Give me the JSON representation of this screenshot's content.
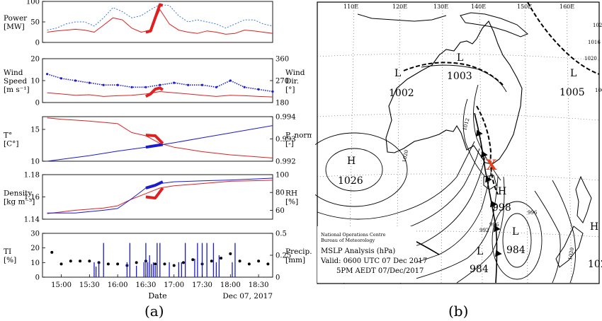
{
  "figure": {
    "caption_a": "(a)",
    "caption_b": "(b)"
  },
  "chart_data": [
    {
      "type": "line",
      "panel": "power",
      "ylabel_lines": [
        "Power",
        "[MW]"
      ],
      "ylim": [
        0,
        100
      ],
      "yticks": [
        0,
        50,
        100
      ],
      "series": [
        {
          "color": "#e02020",
          "style": "solid",
          "x": [
            "14:45",
            "14:55",
            "15:05",
            "15:15",
            "15:25",
            "15:35",
            "15:45",
            "15:55",
            "16:05",
            "16:15",
            "16:25",
            "16:35",
            "16:45",
            "16:55",
            "17:05",
            "17:15",
            "17:25",
            "17:35",
            "17:45",
            "17:55",
            "18:05",
            "18:15",
            "18:25",
            "18:35",
            "18:45"
          ],
          "y": [
            25,
            28,
            30,
            32,
            30,
            25,
            42,
            60,
            55,
            35,
            25,
            30,
            80,
            45,
            30,
            25,
            22,
            28,
            25,
            20,
            22,
            30,
            28,
            25,
            22
          ]
        },
        {
          "color": "#3c78d8",
          "style": "dotted",
          "x": [
            "14:45",
            "14:55",
            "15:05",
            "15:15",
            "15:25",
            "15:35",
            "15:45",
            "15:55",
            "16:05",
            "16:15",
            "16:25",
            "16:35",
            "16:45",
            "16:55",
            "17:05",
            "17:15",
            "17:25",
            "17:35",
            "17:45",
            "17:55",
            "18:05",
            "18:15",
            "18:25",
            "18:35",
            "18:45"
          ],
          "y": [
            30,
            35,
            45,
            50,
            50,
            40,
            60,
            85,
            75,
            60,
            65,
            80,
            92,
            90,
            65,
            50,
            55,
            50,
            45,
            35,
            45,
            55,
            55,
            45,
            40
          ]
        },
        {
          "color": "#e02020",
          "style": "bold",
          "x": [
            "16:30",
            "16:35",
            "16:40",
            "16:45",
            "16:48"
          ],
          "y": [
            25,
            28,
            60,
            92,
            90
          ]
        }
      ]
    },
    {
      "type": "line",
      "panel": "wind",
      "ylabel_lines": [
        "Wind",
        "Speed",
        "[m s⁻¹]"
      ],
      "y2label_lines": [
        "Wind",
        "Dir.",
        "[°]"
      ],
      "ylim": [
        0,
        20
      ],
      "yticks": [
        0,
        10,
        20
      ],
      "y2lim": [
        180,
        360
      ],
      "y2ticks": [
        180,
        270,
        360
      ],
      "series": [
        {
          "color": "#1a1ad0",
          "style": "dotted-markers",
          "x": [
            "14:45",
            "15:00",
            "15:15",
            "15:30",
            "15:45",
            "16:00",
            "16:15",
            "16:30",
            "16:45",
            "17:00",
            "17:15",
            "17:30",
            "17:45",
            "18:00",
            "18:15",
            "18:30",
            "18:45"
          ],
          "y": [
            13,
            11,
            10,
            9,
            8,
            8,
            7,
            7,
            8,
            9,
            8,
            8,
            7,
            10,
            7,
            6,
            5
          ]
        },
        {
          "color": "#e02020",
          "style": "solid",
          "x": [
            "14:45",
            "15:00",
            "15:15",
            "15:30",
            "15:45",
            "16:00",
            "16:15",
            "16:30",
            "16:45",
            "17:00",
            "17:15",
            "17:30",
            "17:45",
            "18:00",
            "18:15",
            "18:30",
            "18:45"
          ],
          "y": [
            220,
            215,
            210,
            212,
            205,
            208,
            210,
            215,
            225,
            220,
            215,
            210,
            205,
            210,
            208,
            205,
            203
          ]
        },
        {
          "color": "#e02020",
          "style": "bold",
          "x": [
            "16:30",
            "16:35",
            "16:40",
            "16:45",
            "16:48"
          ],
          "y": [
            205,
            215,
            235,
            240,
            232
          ]
        }
      ]
    },
    {
      "type": "line",
      "panel": "temperature",
      "ylabel_lines": [
        "T°",
        "[C°]"
      ],
      "y2label_lines": [
        "P_norm",
        "[-]"
      ],
      "ylim": [
        10,
        17
      ],
      "yticks": [
        10,
        15
      ],
      "y2lim": [
        0.992,
        0.994
      ],
      "y2ticks": [
        0.992,
        0.993,
        0.994
      ],
      "series": [
        {
          "color": "#e02020",
          "style": "solid",
          "x": [
            "14:45",
            "15:00",
            "15:30",
            "16:00",
            "16:15",
            "16:30",
            "16:45",
            "17:00",
            "17:30",
            "18:00",
            "18:45"
          ],
          "y": [
            16.8,
            16.6,
            16.3,
            15.9,
            14.5,
            14.0,
            12.8,
            12.2,
            11.5,
            11.0,
            10.5
          ]
        },
        {
          "color": "#1a1ad0",
          "style": "solid",
          "x": [
            "14:45",
            "15:30",
            "16:00",
            "16:30",
            "17:00",
            "17:30",
            "18:00",
            "18:45"
          ],
          "y": [
            0.992,
            0.99225,
            0.99245,
            0.99263,
            0.99283,
            0.99305,
            0.99327,
            0.9936
          ]
        },
        {
          "color": "#1a1ad0",
          "style": "bold",
          "x": [
            "16:30",
            "16:48"
          ],
          "y": [
            0.99263,
            0.99275
          ]
        },
        {
          "color": "#e02020",
          "style": "bold",
          "x": [
            "16:30",
            "16:40",
            "16:48"
          ],
          "y": [
            14.1,
            14.0,
            12.8
          ]
        }
      ]
    },
    {
      "type": "line",
      "panel": "density",
      "ylabel_lines": [
        "Density",
        "[kg m⁻³]"
      ],
      "y2label_lines": [
        "RH",
        "[%]"
      ],
      "ylim": [
        1.14,
        1.18
      ],
      "yticks": [
        1.14,
        1.16,
        1.18
      ],
      "y2lim": [
        50,
        100
      ],
      "y2ticks": [
        60,
        80,
        100
      ],
      "series": [
        {
          "color": "#e02020",
          "style": "solid",
          "x": [
            "14:45",
            "15:15",
            "15:45",
            "16:00",
            "16:15",
            "16:30",
            "16:45",
            "17:00",
            "17:30",
            "18:00",
            "18:45"
          ],
          "y": [
            1.145,
            1.148,
            1.15,
            1.152,
            1.158,
            1.163,
            1.168,
            1.17,
            1.172,
            1.174,
            1.175
          ]
        },
        {
          "color": "#1a1ad0",
          "style": "solid",
          "x": [
            "14:45",
            "15:15",
            "15:45",
            "16:00",
            "16:15",
            "16:30",
            "16:45",
            "17:00",
            "17:30",
            "18:00",
            "18:45"
          ],
          "y": [
            57,
            57,
            60,
            62,
            73,
            85,
            90,
            92,
            93,
            94,
            96
          ]
        },
        {
          "color": "#1a1ad0",
          "style": "bold",
          "x": [
            "16:30",
            "16:40",
            "16:48"
          ],
          "y": [
            85,
            88,
            92
          ]
        },
        {
          "color": "#e02020",
          "style": "bold",
          "x": [
            "16:30",
            "16:40",
            "16:48"
          ],
          "y": [
            1.16,
            1.159,
            1.168
          ]
        }
      ]
    },
    {
      "type": "scatter",
      "panel": "turbulence",
      "ylabel_lines": [
        "TI",
        "[%]"
      ],
      "y2label_lines": [
        "Precip.",
        "[mm]"
      ],
      "ylim": [
        0,
        30
      ],
      "yticks": [
        0,
        10,
        20,
        30
      ],
      "y2lim": [
        0,
        0.5
      ],
      "y2ticks": [
        0,
        0.25,
        0.5
      ],
      "xticks": [
        "15:00",
        "15:30",
        "16:00",
        "16:30",
        "17:00",
        "17:30",
        "18:00",
        "18:30"
      ],
      "xlabel": "Date",
      "date_label": "Dec 07, 2017",
      "series": [
        {
          "color": "#000000",
          "style": "markers",
          "x": [
            "14:50",
            "15:00",
            "15:10",
            "15:20",
            "15:30",
            "15:40",
            "15:50",
            "16:00",
            "16:10",
            "16:20",
            "16:30",
            "16:40",
            "16:50",
            "17:00",
            "17:10",
            "17:20",
            "17:30",
            "17:40",
            "17:50",
            "18:00",
            "18:10",
            "18:20",
            "18:30",
            "18:40"
          ],
          "y": [
            17,
            9,
            11,
            11,
            11,
            10,
            9,
            9,
            8,
            10,
            11,
            9,
            9,
            8,
            10,
            12,
            9,
            11,
            13,
            16,
            11,
            9,
            11,
            9
          ]
        },
        {
          "color": "#1a1ad0",
          "style": "bars",
          "x": [
            "15:35",
            "15:37",
            "15:40",
            "15:45",
            "16:10",
            "16:13",
            "16:20",
            "16:28",
            "16:30",
            "16:32",
            "16:34",
            "16:36",
            "16:38",
            "16:40",
            "16:42",
            "16:45",
            "16:55",
            "17:05",
            "17:08",
            "17:12",
            "17:22",
            "17:25",
            "17:30",
            "17:35",
            "17:42",
            "17:45",
            "17:48",
            "18:02",
            "18:05"
          ],
          "y": [
            0.17,
            0.12,
            0.17,
            0.39,
            0.17,
            0.39,
            0.13,
            0.17,
            0.39,
            0.17,
            0.25,
            0.15,
            0.17,
            0.13,
            0.39,
            0.39,
            0.17,
            0.17,
            0.17,
            0.39,
            0.21,
            0.39,
            0.39,
            0.39,
            0.39,
            0.17,
            0.25,
            0.17,
            0.39
          ]
        }
      ]
    }
  ],
  "map": {
    "title_lines": [
      "National Operations Centre",
      "Bureau of Meteorology",
      "MSLP Analysis (hPa)",
      "Valid: 0600 UTC 07 Dec 2017",
      "5PM AEDT 07/Dec/2017"
    ],
    "longitudes": [
      "110E",
      "120E",
      "130E",
      "140E",
      "150E",
      "160E"
    ],
    "pressure_centers": [
      {
        "type": "L",
        "value": "1003"
      },
      {
        "type": "L",
        "value": "1002"
      },
      {
        "type": "L",
        "value": "1005"
      },
      {
        "type": "H",
        "value": "1026"
      },
      {
        "type": "H",
        "value": "998"
      },
      {
        "type": "L",
        "value": "984"
      },
      {
        "type": "L",
        "value": "984"
      },
      {
        "type": "H",
        "value": "102"
      }
    ],
    "isobar_labels": [
      "1020",
      "1012",
      "1020",
      "1016",
      "1020",
      "1004",
      "996",
      "992",
      "996",
      "1020"
    ],
    "marker": "X",
    "marker_color": "#e8401c"
  }
}
